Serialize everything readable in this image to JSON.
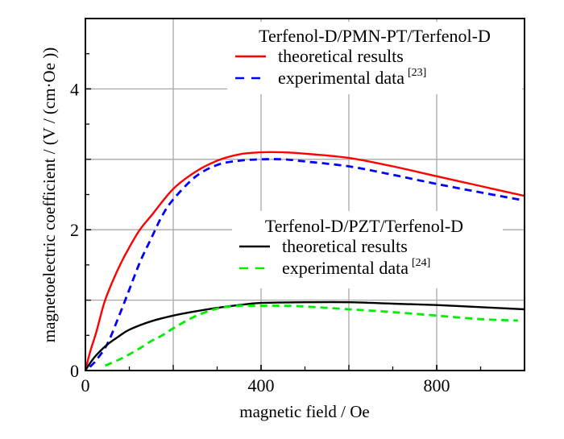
{
  "chart_data": {
    "type": "line",
    "title": "",
    "xlabel": "magnetic field / Oe",
    "ylabel": "magnetoelectric coefficient / (V / (cm·Oe ))",
    "xlim": [
      0,
      1000
    ],
    "ylim": [
      0,
      5
    ],
    "grid": true,
    "x_ticks": [
      0,
      400,
      800
    ],
    "x_tick_labels": [
      "0",
      "400",
      "800"
    ],
    "x_gridlines": [
      200,
      400,
      600,
      800
    ],
    "x_minor_ticks": [
      100,
      300,
      500,
      700,
      900
    ],
    "y_ticks": [
      0,
      2,
      4
    ],
    "y_tick_labels": [
      "0",
      "2",
      "4"
    ],
    "y_gridlines": [
      1,
      2,
      3,
      4
    ],
    "y_minor_ticks": [
      0.5,
      1.5,
      2.5,
      3.5,
      4.5
    ],
    "legends": [
      {
        "title": "Terfenol-D/PMN-PT/Terfenol-D",
        "placement": "top-right",
        "entries": [
          {
            "label": "theoretical results",
            "sup": "",
            "series": "pmn_theory"
          },
          {
            "label": "experimental data",
            "sup": "[23]",
            "series": "pmn_exp"
          }
        ]
      },
      {
        "title": "Terfenol-D/PZT/Terfenol-D",
        "placement": "center-right",
        "entries": [
          {
            "label": "theoretical results",
            "sup": "",
            "series": "pzt_theory"
          },
          {
            "label": "experimental data",
            "sup": "[24]",
            "series": "pzt_exp"
          }
        ]
      }
    ],
    "series": [
      {
        "id": "pmn_theory",
        "name": "Terfenol-D/PMN-PT/Terfenol-D theoretical results",
        "color": "#ff0000",
        "style": "solid",
        "x": [
          0,
          10,
          25,
          45,
          75,
          100,
          124,
          150,
          200,
          250,
          300,
          350,
          400,
          450,
          500,
          600,
          700,
          800,
          900,
          1000
        ],
        "y": [
          0,
          0.25,
          0.55,
          1.0,
          1.45,
          1.75,
          2.0,
          2.2,
          2.58,
          2.82,
          2.98,
          3.07,
          3.1,
          3.1,
          3.08,
          3.02,
          2.9,
          2.76,
          2.62,
          2.48
        ]
      },
      {
        "id": "pmn_exp",
        "name": "Terfenol-D/PMN-PT/Terfenol-D experimental data [23]",
        "color": "#0000ff",
        "style": "dashed",
        "x": [
          10,
          25,
          50,
          75,
          100,
          125,
          150,
          175,
          200,
          250,
          300,
          350,
          400,
          450,
          500,
          600,
          700,
          800,
          900,
          995
        ],
        "y": [
          0.05,
          0.15,
          0.38,
          0.75,
          1.15,
          1.55,
          1.88,
          2.2,
          2.43,
          2.75,
          2.92,
          2.98,
          3.0,
          3.0,
          2.97,
          2.9,
          2.78,
          2.65,
          2.53,
          2.42
        ]
      },
      {
        "id": "pzt_theory",
        "name": "Terfenol-D/PZT/Terfenol-D theoretical results",
        "color": "#000000",
        "style": "solid",
        "x": [
          0,
          10,
          25,
          50,
          75,
          100,
          150,
          200,
          250,
          300,
          350,
          400,
          500,
          600,
          700,
          800,
          900,
          1000
        ],
        "y": [
          0,
          0.1,
          0.22,
          0.37,
          0.48,
          0.58,
          0.7,
          0.78,
          0.84,
          0.89,
          0.93,
          0.96,
          0.97,
          0.97,
          0.95,
          0.93,
          0.9,
          0.87
        ]
      },
      {
        "id": "pzt_exp",
        "name": "Terfenol-D/PZT/Terfenol-D experimental data [24]",
        "color": "#00ee00",
        "style": "dashed",
        "x": [
          45,
          75,
          100,
          125,
          150,
          175,
          200,
          250,
          300,
          350,
          400,
          450,
          500,
          600,
          700,
          800,
          900,
          985
        ],
        "y": [
          0.07,
          0.15,
          0.23,
          0.32,
          0.42,
          0.5,
          0.6,
          0.77,
          0.88,
          0.92,
          0.92,
          0.92,
          0.91,
          0.87,
          0.83,
          0.78,
          0.73,
          0.71
        ]
      }
    ]
  }
}
